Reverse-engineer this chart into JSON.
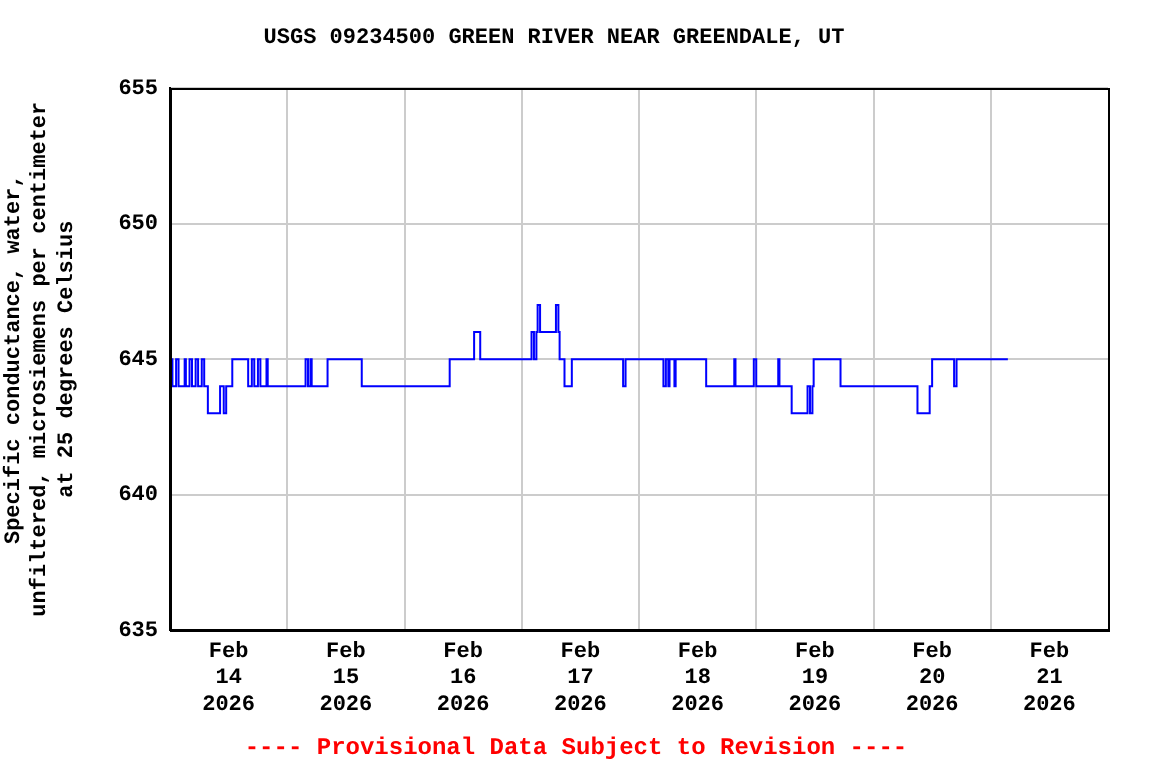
{
  "chart_data": {
    "type": "step",
    "title": "USGS 09234500 GREEN RIVER NEAR GREENDALE, UT",
    "ylabel": "Specific conductance, water,\nunfiltered, microsiemens per centimeter\nat 25 degrees Celsius",
    "annotations": [
      "---- Provisional Data Subject to Revision ----"
    ],
    "x": [
      "2026-02-14T00:00",
      "2026-02-14T00:30",
      "2026-02-14T01:15",
      "2026-02-14T01:45",
      "2026-02-14T03:00",
      "2026-02-14T03:15",
      "2026-02-14T04:00",
      "2026-02-14T04:30",
      "2026-02-14T05:15",
      "2026-02-14T05:45",
      "2026-02-14T06:30",
      "2026-02-14T07:00",
      "2026-02-14T07:45",
      "2026-02-14T10:15",
      "2026-02-14T11:00",
      "2026-02-14T11:30",
      "2026-02-14T12:45",
      "2026-02-14T16:00",
      "2026-02-14T16:45",
      "2026-02-14T17:15",
      "2026-02-14T18:00",
      "2026-02-14T18:30",
      "2026-02-14T19:45",
      "2026-02-14T20:00",
      "2026-02-15T03:45",
      "2026-02-15T04:15",
      "2026-02-15T04:45",
      "2026-02-15T05:00",
      "2026-02-15T08:15",
      "2026-02-15T15:15",
      "2026-02-16T09:15",
      "2026-02-16T14:15",
      "2026-02-16T15:30",
      "2026-02-17T02:00",
      "2026-02-17T02:30",
      "2026-02-17T03:00",
      "2026-02-17T03:15",
      "2026-02-17T03:45",
      "2026-02-17T07:00",
      "2026-02-17T07:30",
      "2026-02-17T07:45",
      "2026-02-17T08:45",
      "2026-02-17T10:15",
      "2026-02-17T20:45",
      "2026-02-17T21:15",
      "2026-02-18T05:00",
      "2026-02-18T05:30",
      "2026-02-18T06:00",
      "2026-02-18T06:15",
      "2026-02-18T07:15",
      "2026-02-18T07:30",
      "2026-02-18T13:45",
      "2026-02-18T19:30",
      "2026-02-18T19:45",
      "2026-02-18T23:30",
      "2026-02-19T00:00",
      "2026-02-19T04:30",
      "2026-02-19T04:45",
      "2026-02-19T07:15",
      "2026-02-19T10:30",
      "2026-02-19T11:00",
      "2026-02-19T11:30",
      "2026-02-19T11:45",
      "2026-02-19T17:15",
      "2026-02-20T09:00",
      "2026-02-20T11:30",
      "2026-02-20T12:00",
      "2026-02-20T16:30",
      "2026-02-20T17:00",
      "2026-02-20T17:15",
      "2026-02-21T03:30"
    ],
    "series": [
      {
        "color": "#0000ff",
        "values": [
          644,
          645,
          644,
          645,
          644,
          645,
          644,
          645,
          644,
          645,
          644,
          645,
          644,
          643,
          644,
          643,
          644,
          645,
          644,
          645,
          644,
          645,
          644,
          645,
          644,
          645,
          644,
          645,
          644,
          645,
          644,
          645,
          646,
          645,
          646,
          645,
          646,
          647,
          646,
          647,
          646,
          645,
          644,
          645,
          644,
          645,
          644,
          645,
          644,
          645,
          644,
          645,
          644,
          645,
          644,
          645,
          644,
          645,
          644,
          643,
          644,
          643,
          644,
          645,
          644,
          643,
          644,
          645,
          644,
          645,
          645
        ]
      }
    ],
    "xlim": [
      "2026-02-14T00:00",
      "2026-02-22T00:00"
    ],
    "xticks": [
      {
        "value": "2026-02-14T12:00",
        "label": "Feb\n14\n2026"
      },
      {
        "value": "2026-02-15T00:00",
        "label": null
      },
      {
        "value": "2026-02-15T12:00",
        "label": "Feb\n15\n2026"
      },
      {
        "value": "2026-02-16T00:00",
        "label": null
      },
      {
        "value": "2026-02-16T12:00",
        "label": "Feb\n16\n2026"
      },
      {
        "value": "2026-02-17T00:00",
        "label": null
      },
      {
        "value": "2026-02-17T12:00",
        "label": "Feb\n17\n2026"
      },
      {
        "value": "2026-02-18T00:00",
        "label": null
      },
      {
        "value": "2026-02-18T12:00",
        "label": "Feb\n18\n2026"
      },
      {
        "value": "2026-02-19T00:00",
        "label": null
      },
      {
        "value": "2026-02-19T12:00",
        "label": "Feb\n19\n2026"
      },
      {
        "value": "2026-02-20T00:00",
        "label": null
      },
      {
        "value": "2026-02-20T12:00",
        "label": "Feb\n20\n2026"
      },
      {
        "value": "2026-02-21T00:00",
        "label": null
      },
      {
        "value": "2026-02-21T12:00",
        "label": "Feb\n21\n2026"
      }
    ],
    "ylim": [
      635,
      655
    ],
    "yticks": [
      635,
      640,
      645,
      650,
      655
    ],
    "grid": true,
    "legend": false
  }
}
